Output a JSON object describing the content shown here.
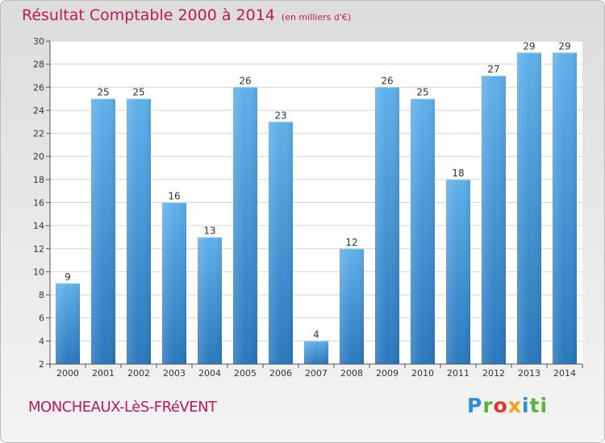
{
  "title": "Résultat Comptable 2000 à 2014",
  "unit_note": "(en milliers d'€)",
  "commune": "MONCHEAUX-LèS-FRéVENT",
  "logo": {
    "part1": "P",
    "part2": "r",
    "part3": "o",
    "part4": "x",
    "part5": "i",
    "part6": "ti",
    "full": "Proxiti"
  },
  "colors": {
    "bar": "#5aaae6",
    "bar_dark": "#2b7bc0",
    "title": "#c2185b"
  },
  "chart_data": {
    "type": "bar",
    "categories": [
      "2000",
      "2001",
      "2002",
      "2003",
      "2004",
      "2005",
      "2006",
      "2007",
      "2008",
      "2009",
      "2010",
      "2011",
      "2012",
      "2013",
      "2014"
    ],
    "values": [
      9,
      25,
      25,
      16,
      13,
      26,
      23,
      4,
      12,
      26,
      25,
      18,
      27,
      29,
      29
    ],
    "title": "Résultat Comptable 2000 à 2014",
    "xlabel": "",
    "ylabel": "",
    "ylim": [
      2,
      30
    ],
    "yticks": [
      2,
      4,
      6,
      8,
      10,
      12,
      14,
      16,
      18,
      20,
      22,
      24,
      26,
      28,
      30
    ],
    "grid": true,
    "data_labels": true
  }
}
